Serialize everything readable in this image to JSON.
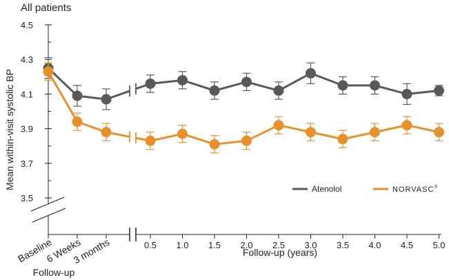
{
  "chart_data": {
    "type": "line",
    "title": "All patients",
    "ylabel": "Mean within-visit systolic BP",
    "xlabel": "Follow-up (years)",
    "xlabel_left": "Follow-up",
    "ylim": [
      3.5,
      4.5
    ],
    "yticks": [
      3.5,
      3.7,
      3.9,
      4.1,
      4.3,
      4.5
    ],
    "categories_early": [
      "Baseline",
      "6 Weeks",
      "3 months"
    ],
    "categories_years": [
      "0.5",
      "1.0",
      "1.5",
      "2.0",
      "2.5",
      "3.0",
      "3.5",
      "4.0",
      "4.5",
      "5.0"
    ],
    "grid": false,
    "legend_position": "bottom-right",
    "series": [
      {
        "name": "Atenolol",
        "color": "#58595b",
        "early_values": [
          4.25,
          4.09,
          4.07
        ],
        "early_errors": [
          0.06,
          0.06,
          0.06
        ],
        "year_values": [
          4.16,
          4.18,
          4.12,
          4.17,
          4.12,
          4.22,
          4.15,
          4.15,
          4.1,
          4.12
        ],
        "year_errors": [
          0.05,
          0.05,
          0.05,
          0.05,
          0.05,
          0.06,
          0.05,
          0.05,
          0.06,
          0.03
        ]
      },
      {
        "name": "NORVASC",
        "name_mark": "®",
        "color": "#e8912c",
        "early_values": [
          4.23,
          3.94,
          3.88
        ],
        "early_errors": [
          0.05,
          0.05,
          0.05
        ],
        "year_values": [
          3.83,
          3.87,
          3.81,
          3.83,
          3.92,
          3.88,
          3.84,
          3.88,
          3.92,
          3.88
        ],
        "year_errors": [
          0.05,
          0.05,
          0.05,
          0.05,
          0.05,
          0.05,
          0.05,
          0.05,
          0.05,
          0.05
        ]
      }
    ]
  }
}
